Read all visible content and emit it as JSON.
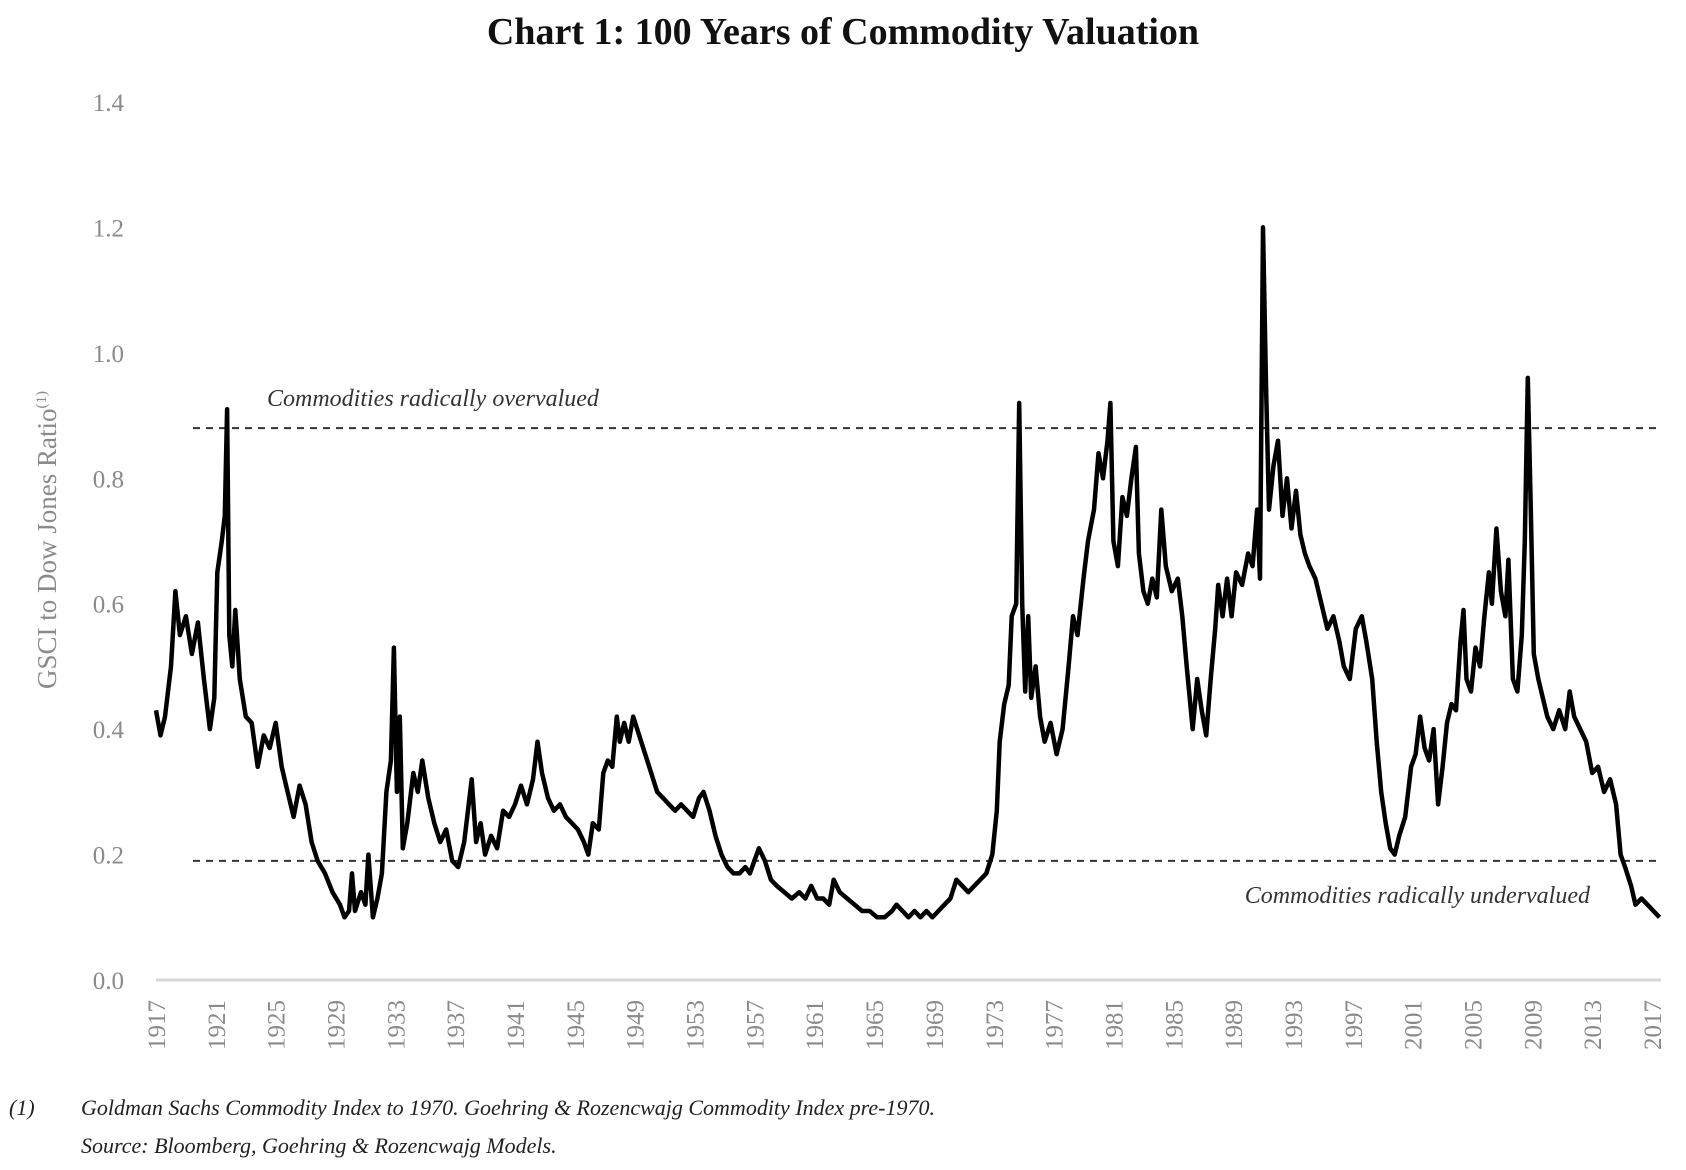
{
  "chart_data": {
    "type": "line",
    "title": "Chart 1: 100 Years of Commodity Valuation",
    "ylabel": "GSCI to Dow Jones Ratio",
    "ylabel_superscript": "(1)",
    "xlabel": "",
    "ylim": [
      0,
      1.4
    ],
    "xlim": [
      1917,
      2018
    ],
    "y_ticks": [
      "0.0",
      "0.2",
      "0.4",
      "0.6",
      "0.8",
      "1.0",
      "1.2",
      "1.4"
    ],
    "x_ticks": [
      "1917",
      "1921",
      "1925",
      "1929",
      "1933",
      "1937",
      "1941",
      "1945",
      "1949",
      "1953",
      "1957",
      "1961",
      "1965",
      "1969",
      "1973",
      "1977",
      "1981",
      "1985",
      "1989",
      "1993",
      "1997",
      "2001",
      "2005",
      "2009",
      "2013",
      "2017"
    ],
    "grid": false,
    "line_color": "#000000",
    "reference_lines": [
      {
        "y": 0.88,
        "style": "dashed",
        "label": "Commodities radically overvalued"
      },
      {
        "y": 0.19,
        "style": "dashed",
        "label": "Commodities radically undervalued"
      }
    ],
    "series": [
      {
        "points": [
          [
            1917.0,
            0.43
          ],
          [
            1917.3,
            0.39
          ],
          [
            1917.6,
            0.42
          ],
          [
            1918.0,
            0.5
          ],
          [
            1918.3,
            0.62
          ],
          [
            1918.6,
            0.55
          ],
          [
            1919.0,
            0.58
          ],
          [
            1919.4,
            0.52
          ],
          [
            1919.8,
            0.57
          ],
          [
            1920.2,
            0.48
          ],
          [
            1920.6,
            0.4
          ],
          [
            1920.9,
            0.45
          ],
          [
            1921.1,
            0.65
          ],
          [
            1921.4,
            0.7
          ],
          [
            1921.6,
            0.74
          ],
          [
            1921.75,
            0.91
          ],
          [
            1921.9,
            0.55
          ],
          [
            1922.1,
            0.5
          ],
          [
            1922.3,
            0.59
          ],
          [
            1922.6,
            0.48
          ],
          [
            1923.0,
            0.42
          ],
          [
            1923.4,
            0.41
          ],
          [
            1923.8,
            0.34
          ],
          [
            1924.2,
            0.39
          ],
          [
            1924.6,
            0.37
          ],
          [
            1925.0,
            0.41
          ],
          [
            1925.4,
            0.34
          ],
          [
            1925.8,
            0.3
          ],
          [
            1926.2,
            0.26
          ],
          [
            1926.6,
            0.31
          ],
          [
            1927.0,
            0.28
          ],
          [
            1927.4,
            0.22
          ],
          [
            1927.8,
            0.19
          ],
          [
            1928.3,
            0.17
          ],
          [
            1928.8,
            0.14
          ],
          [
            1929.3,
            0.12
          ],
          [
            1929.6,
            0.1
          ],
          [
            1929.9,
            0.11
          ],
          [
            1930.1,
            0.17
          ],
          [
            1930.3,
            0.11
          ],
          [
            1930.7,
            0.14
          ],
          [
            1931.0,
            0.12
          ],
          [
            1931.2,
            0.2
          ],
          [
            1931.5,
            0.1
          ],
          [
            1931.8,
            0.13
          ],
          [
            1932.1,
            0.17
          ],
          [
            1932.4,
            0.3
          ],
          [
            1932.7,
            0.35
          ],
          [
            1932.9,
            0.53
          ],
          [
            1933.1,
            0.3
          ],
          [
            1933.3,
            0.42
          ],
          [
            1933.5,
            0.21
          ],
          [
            1933.8,
            0.25
          ],
          [
            1934.2,
            0.33
          ],
          [
            1934.5,
            0.3
          ],
          [
            1934.8,
            0.35
          ],
          [
            1935.2,
            0.29
          ],
          [
            1935.6,
            0.25
          ],
          [
            1936.0,
            0.22
          ],
          [
            1936.4,
            0.24
          ],
          [
            1936.8,
            0.19
          ],
          [
            1937.2,
            0.18
          ],
          [
            1937.6,
            0.22
          ],
          [
            1937.9,
            0.28
          ],
          [
            1938.1,
            0.32
          ],
          [
            1938.4,
            0.22
          ],
          [
            1938.7,
            0.25
          ],
          [
            1939.0,
            0.2
          ],
          [
            1939.4,
            0.23
          ],
          [
            1939.8,
            0.21
          ],
          [
            1940.2,
            0.27
          ],
          [
            1940.6,
            0.26
          ],
          [
            1941.0,
            0.28
          ],
          [
            1941.4,
            0.31
          ],
          [
            1941.8,
            0.28
          ],
          [
            1942.2,
            0.32
          ],
          [
            1942.5,
            0.38
          ],
          [
            1942.8,
            0.33
          ],
          [
            1943.2,
            0.29
          ],
          [
            1943.6,
            0.27
          ],
          [
            1944.0,
            0.28
          ],
          [
            1944.4,
            0.26
          ],
          [
            1944.8,
            0.25
          ],
          [
            1945.2,
            0.24
          ],
          [
            1945.6,
            0.22
          ],
          [
            1945.9,
            0.2
          ],
          [
            1946.2,
            0.25
          ],
          [
            1946.6,
            0.24
          ],
          [
            1946.9,
            0.33
          ],
          [
            1947.2,
            0.35
          ],
          [
            1947.5,
            0.34
          ],
          [
            1947.8,
            0.42
          ],
          [
            1948.0,
            0.38
          ],
          [
            1948.3,
            0.41
          ],
          [
            1948.6,
            0.38
          ],
          [
            1948.9,
            0.42
          ],
          [
            1949.3,
            0.39
          ],
          [
            1949.7,
            0.36
          ],
          [
            1950.1,
            0.33
          ],
          [
            1950.5,
            0.3
          ],
          [
            1950.9,
            0.29
          ],
          [
            1951.3,
            0.28
          ],
          [
            1951.7,
            0.27
          ],
          [
            1952.1,
            0.28
          ],
          [
            1952.5,
            0.27
          ],
          [
            1952.9,
            0.26
          ],
          [
            1953.3,
            0.29
          ],
          [
            1953.6,
            0.3
          ],
          [
            1954.0,
            0.27
          ],
          [
            1954.4,
            0.23
          ],
          [
            1954.8,
            0.2
          ],
          [
            1955.2,
            0.18
          ],
          [
            1955.6,
            0.17
          ],
          [
            1956.0,
            0.17
          ],
          [
            1956.4,
            0.18
          ],
          [
            1956.7,
            0.17
          ],
          [
            1957.0,
            0.19
          ],
          [
            1957.3,
            0.21
          ],
          [
            1957.7,
            0.19
          ],
          [
            1958.1,
            0.16
          ],
          [
            1958.5,
            0.15
          ],
          [
            1959.0,
            0.14
          ],
          [
            1959.5,
            0.13
          ],
          [
            1960.0,
            0.14
          ],
          [
            1960.4,
            0.13
          ],
          [
            1960.8,
            0.15
          ],
          [
            1961.2,
            0.13
          ],
          [
            1961.6,
            0.13
          ],
          [
            1962.0,
            0.12
          ],
          [
            1962.3,
            0.16
          ],
          [
            1962.7,
            0.14
          ],
          [
            1963.2,
            0.13
          ],
          [
            1963.7,
            0.12
          ],
          [
            1964.2,
            0.11
          ],
          [
            1964.7,
            0.11
          ],
          [
            1965.2,
            0.1
          ],
          [
            1965.7,
            0.1
          ],
          [
            1966.2,
            0.11
          ],
          [
            1966.5,
            0.12
          ],
          [
            1966.9,
            0.11
          ],
          [
            1967.3,
            0.1
          ],
          [
            1967.7,
            0.11
          ],
          [
            1968.1,
            0.1
          ],
          [
            1968.5,
            0.11
          ],
          [
            1968.9,
            0.1
          ],
          [
            1969.3,
            0.11
          ],
          [
            1969.7,
            0.12
          ],
          [
            1970.1,
            0.13
          ],
          [
            1970.5,
            0.16
          ],
          [
            1970.9,
            0.15
          ],
          [
            1971.3,
            0.14
          ],
          [
            1971.7,
            0.15
          ],
          [
            1972.1,
            0.16
          ],
          [
            1972.5,
            0.17
          ],
          [
            1972.9,
            0.2
          ],
          [
            1973.2,
            0.27
          ],
          [
            1973.4,
            0.38
          ],
          [
            1973.7,
            0.44
          ],
          [
            1974.0,
            0.47
          ],
          [
            1974.2,
            0.58
          ],
          [
            1974.5,
            0.6
          ],
          [
            1974.7,
            0.92
          ],
          [
            1974.9,
            0.6
          ],
          [
            1975.1,
            0.46
          ],
          [
            1975.3,
            0.58
          ],
          [
            1975.5,
            0.45
          ],
          [
            1975.8,
            0.5
          ],
          [
            1976.1,
            0.42
          ],
          [
            1976.4,
            0.38
          ],
          [
            1976.8,
            0.41
          ],
          [
            1977.2,
            0.36
          ],
          [
            1977.6,
            0.4
          ],
          [
            1978.0,
            0.5
          ],
          [
            1978.3,
            0.58
          ],
          [
            1978.6,
            0.55
          ],
          [
            1979.0,
            0.64
          ],
          [
            1979.3,
            0.7
          ],
          [
            1979.7,
            0.75
          ],
          [
            1980.0,
            0.84
          ],
          [
            1980.3,
            0.8
          ],
          [
            1980.6,
            0.86
          ],
          [
            1980.8,
            0.92
          ],
          [
            1981.0,
            0.7
          ],
          [
            1981.3,
            0.66
          ],
          [
            1981.6,
            0.77
          ],
          [
            1981.9,
            0.74
          ],
          [
            1982.2,
            0.8
          ],
          [
            1982.5,
            0.85
          ],
          [
            1982.7,
            0.68
          ],
          [
            1983.0,
            0.62
          ],
          [
            1983.3,
            0.6
          ],
          [
            1983.6,
            0.64
          ],
          [
            1983.9,
            0.61
          ],
          [
            1984.2,
            0.75
          ],
          [
            1984.5,
            0.66
          ],
          [
            1984.9,
            0.62
          ],
          [
            1985.3,
            0.64
          ],
          [
            1985.6,
            0.58
          ],
          [
            1985.9,
            0.5
          ],
          [
            1986.1,
            0.45
          ],
          [
            1986.3,
            0.4
          ],
          [
            1986.6,
            0.48
          ],
          [
            1986.9,
            0.43
          ],
          [
            1987.2,
            0.39
          ],
          [
            1987.5,
            0.48
          ],
          [
            1987.8,
            0.56
          ],
          [
            1988.0,
            0.63
          ],
          [
            1988.3,
            0.58
          ],
          [
            1988.6,
            0.64
          ],
          [
            1988.9,
            0.58
          ],
          [
            1989.2,
            0.65
          ],
          [
            1989.6,
            0.63
          ],
          [
            1990.0,
            0.68
          ],
          [
            1990.3,
            0.66
          ],
          [
            1990.6,
            0.75
          ],
          [
            1990.8,
            0.64
          ],
          [
            1991.0,
            1.2
          ],
          [
            1991.2,
            0.95
          ],
          [
            1991.4,
            0.75
          ],
          [
            1991.7,
            0.82
          ],
          [
            1992.0,
            0.86
          ],
          [
            1992.3,
            0.74
          ],
          [
            1992.6,
            0.8
          ],
          [
            1992.9,
            0.72
          ],
          [
            1993.2,
            0.78
          ],
          [
            1993.5,
            0.71
          ],
          [
            1993.8,
            0.68
          ],
          [
            1994.1,
            0.66
          ],
          [
            1994.5,
            0.64
          ],
          [
            1994.9,
            0.6
          ],
          [
            1995.3,
            0.56
          ],
          [
            1995.7,
            0.58
          ],
          [
            1996.1,
            0.54
          ],
          [
            1996.4,
            0.5
          ],
          [
            1996.8,
            0.48
          ],
          [
            1997.2,
            0.56
          ],
          [
            1997.6,
            0.58
          ],
          [
            1997.9,
            0.54
          ],
          [
            1998.3,
            0.48
          ],
          [
            1998.6,
            0.38
          ],
          [
            1998.9,
            0.3
          ],
          [
            1999.2,
            0.25
          ],
          [
            1999.5,
            0.21
          ],
          [
            1999.8,
            0.2
          ],
          [
            2000.1,
            0.23
          ],
          [
            2000.5,
            0.26
          ],
          [
            2000.9,
            0.34
          ],
          [
            2001.2,
            0.36
          ],
          [
            2001.5,
            0.42
          ],
          [
            2001.8,
            0.37
          ],
          [
            2002.1,
            0.35
          ],
          [
            2002.4,
            0.4
          ],
          [
            2002.7,
            0.28
          ],
          [
            2003.0,
            0.34
          ],
          [
            2003.3,
            0.41
          ],
          [
            2003.6,
            0.44
          ],
          [
            2003.9,
            0.43
          ],
          [
            2004.2,
            0.54
          ],
          [
            2004.4,
            0.59
          ],
          [
            2004.6,
            0.48
          ],
          [
            2004.9,
            0.46
          ],
          [
            2005.2,
            0.53
          ],
          [
            2005.5,
            0.5
          ],
          [
            2005.8,
            0.58
          ],
          [
            2006.1,
            0.65
          ],
          [
            2006.3,
            0.6
          ],
          [
            2006.6,
            0.72
          ],
          [
            2006.9,
            0.62
          ],
          [
            2007.2,
            0.58
          ],
          [
            2007.4,
            0.67
          ],
          [
            2007.7,
            0.48
          ],
          [
            2008.0,
            0.46
          ],
          [
            2008.3,
            0.55
          ],
          [
            2008.5,
            0.7
          ],
          [
            2008.7,
            0.96
          ],
          [
            2008.9,
            0.75
          ],
          [
            2009.1,
            0.52
          ],
          [
            2009.4,
            0.48
          ],
          [
            2009.7,
            0.45
          ],
          [
            2010.0,
            0.42
          ],
          [
            2010.4,
            0.4
          ],
          [
            2010.8,
            0.43
          ],
          [
            2011.2,
            0.4
          ],
          [
            2011.5,
            0.46
          ],
          [
            2011.8,
            0.42
          ],
          [
            2012.2,
            0.4
          ],
          [
            2012.6,
            0.38
          ],
          [
            2013.0,
            0.33
          ],
          [
            2013.4,
            0.34
          ],
          [
            2013.8,
            0.3
          ],
          [
            2014.2,
            0.32
          ],
          [
            2014.6,
            0.28
          ],
          [
            2014.9,
            0.2
          ],
          [
            2015.2,
            0.18
          ],
          [
            2015.6,
            0.15
          ],
          [
            2015.9,
            0.12
          ],
          [
            2016.3,
            0.13
          ],
          [
            2016.7,
            0.12
          ],
          [
            2017.1,
            0.11
          ],
          [
            2017.5,
            0.1
          ]
        ]
      }
    ]
  },
  "footnote": {
    "marker": "(1)",
    "line1": "Goldman Sachs Commodity Index to 1970.  Goehring & Rozencwajg Commodity Index pre-1970.",
    "line2": "Source: Bloomberg, Goehring & Rozencwajg Models."
  }
}
